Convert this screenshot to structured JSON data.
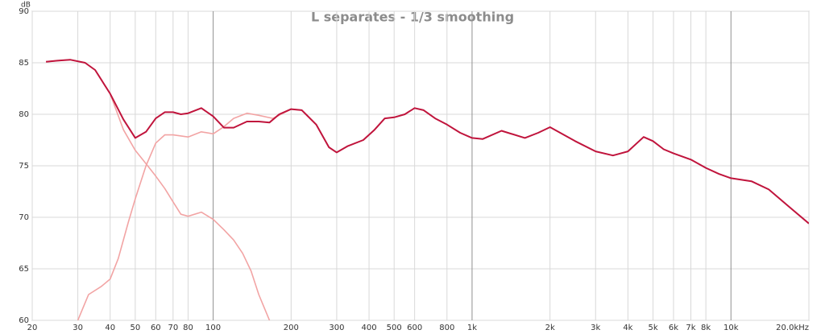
{
  "chart_data": {
    "type": "line",
    "title": "L separates - 1/3 smoothing",
    "y_label": "dB",
    "xscale": "log",
    "grid": true,
    "xlim": [
      20,
      20000
    ],
    "ylim": [
      60,
      90
    ],
    "xticks": [
      20,
      30,
      40,
      50,
      60,
      70,
      80,
      100,
      200,
      300,
      400,
      500,
      600,
      800,
      {
        "value": 1000,
        "label": "1k"
      },
      {
        "value": 2000,
        "label": "2k"
      },
      {
        "value": 3000,
        "label": "3k"
      },
      {
        "value": 4000,
        "label": "4k"
      },
      {
        "value": 5000,
        "label": "5k"
      },
      {
        "value": 6000,
        "label": "6k"
      },
      {
        "value": 7000,
        "label": "7k"
      },
      {
        "value": 8000,
        "label": "8k"
      },
      {
        "value": 10000,
        "label": "10k"
      },
      {
        "value": 20000,
        "label": "20.0kHz"
      }
    ],
    "yticks": [
      60,
      65,
      70,
      75,
      80,
      85,
      90
    ],
    "series": [
      {
        "color": "#f2a4a4",
        "x": [
          22.6,
          25,
          28,
          32,
          35,
          40,
          45,
          50,
          55,
          60,
          65,
          70,
          75,
          80,
          90,
          100,
          110,
          120,
          130,
          140,
          150,
          165
        ],
        "values": [
          85.1,
          85.2,
          85.3,
          85.0,
          84.3,
          82.0,
          78.5,
          76.5,
          75.2,
          74.0,
          72.8,
          71.5,
          70.3,
          70.1,
          70.5,
          69.8,
          68.8,
          67.8,
          66.5,
          64.8,
          62.5,
          60
        ]
      },
      {
        "color": "#f2a4a4",
        "x": [
          30,
          33,
          37,
          40,
          43,
          47,
          50,
          55,
          60,
          65,
          70,
          80,
          90,
          100,
          110,
          120,
          135,
          150,
          170,
          200,
          220,
          250
        ],
        "values": [
          60,
          62.5,
          63.3,
          64.0,
          66.0,
          69.5,
          71.8,
          75.0,
          77.2,
          78.0,
          78.0,
          77.8,
          78.3,
          78.1,
          78.8,
          79.6,
          80.1,
          79.9,
          79.6,
          80.5,
          80.4,
          79.0
        ]
      },
      {
        "color": "#c0143c",
        "x": [
          22.6,
          25,
          28,
          32,
          35,
          40,
          45,
          50,
          55,
          60,
          65,
          70,
          75,
          80,
          90,
          100,
          110,
          120,
          135,
          150,
          165,
          180,
          200,
          220,
          250,
          280,
          300,
          330,
          380,
          420,
          460,
          500,
          550,
          600,
          650,
          720,
          800,
          900,
          1000,
          1100,
          1300,
          1600,
          1800,
          2000,
          2500,
          3000,
          3500,
          4000,
          4600,
          5000,
          5500,
          6000,
          7000,
          8000,
          9000,
          10000,
          12000,
          14000,
          17000,
          20000
        ],
        "values": [
          85.1,
          85.2,
          85.3,
          85.0,
          84.3,
          82.0,
          79.5,
          77.7,
          78.3,
          79.6,
          80.2,
          80.2,
          80.0,
          80.1,
          80.6,
          79.8,
          78.7,
          78.7,
          79.3,
          79.3,
          79.2,
          80.0,
          80.5,
          80.4,
          79.0,
          76.8,
          76.3,
          76.9,
          77.5,
          78.5,
          79.6,
          79.7,
          80.0,
          80.6,
          80.4,
          79.6,
          79.0,
          78.2,
          77.7,
          77.6,
          78.4,
          77.7,
          78.2,
          78.75,
          77.4,
          76.4,
          76.0,
          76.4,
          77.8,
          77.4,
          76.6,
          76.2,
          75.6,
          74.8,
          74.2,
          73.8,
          73.5,
          72.7,
          70.9,
          69.4
        ]
      }
    ]
  }
}
